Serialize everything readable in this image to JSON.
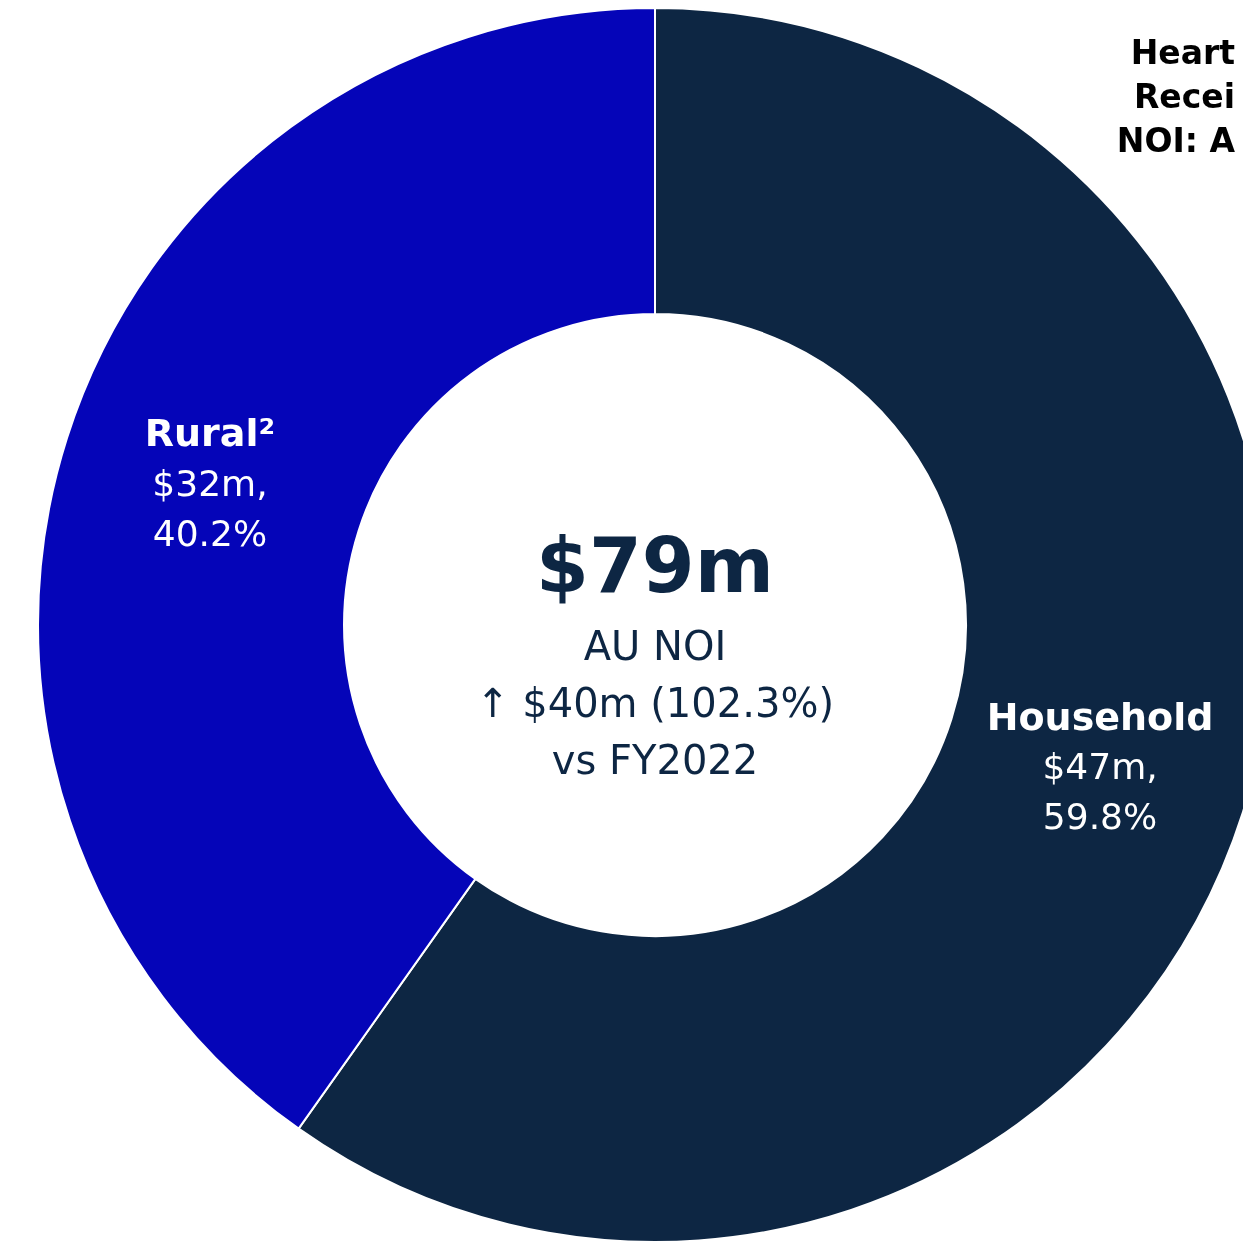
{
  "chart_data": {
    "type": "donut",
    "title": "$79m",
    "subtitle": "AU NOI",
    "categories": [
      "Household",
      "Rural²"
    ],
    "values": [
      59.8,
      40.2
    ],
    "value_labels": [
      "$47m,\n59.8%",
      "$32m,\n40.2%"
    ],
    "colors": [
      "#0d2643",
      "#0505b8"
    ],
    "legend": false,
    "annotations": [
      "↑ $40m (102.3%)",
      "vs FY2022",
      "Heart\nRecei\nNOI: A"
    ]
  }
}
